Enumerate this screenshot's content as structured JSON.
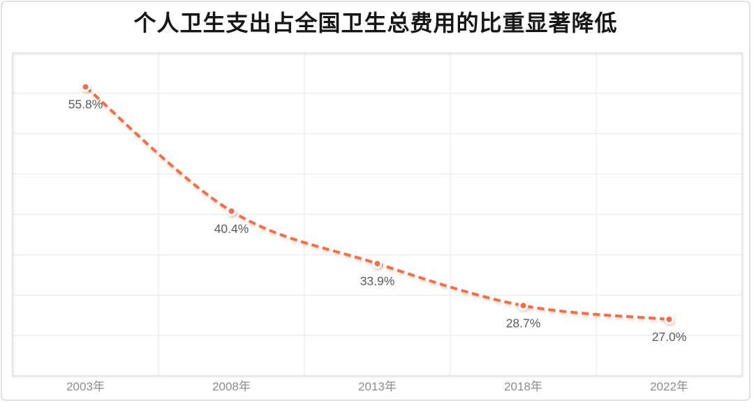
{
  "chart_data": {
    "type": "line",
    "title": "个人卫生支出占全国卫生总费用的比重显著降低",
    "categories": [
      "2003年",
      "2008年",
      "2013年",
      "2018年",
      "2022年"
    ],
    "values": [
      55.8,
      40.4,
      33.9,
      28.7,
      27.0
    ],
    "data_labels": [
      "55.8%",
      "40.4%",
      "33.9%",
      "28.7%",
      "27.0%"
    ],
    "xlabel": "",
    "ylabel": "",
    "ylim": [
      20,
      60
    ],
    "y_grid_step": 5,
    "grid": true,
    "legend_position": "none",
    "line_style": "dashed",
    "smooth": true,
    "colors": {
      "line": "#ed6f4b",
      "marker_fill": "#ed6f4b",
      "marker_ring": "#ffffff",
      "grid": "#e7e7e7",
      "plot_border": "#d9d9d9",
      "data_label": "#595959",
      "axis_label": "#8c8c8c",
      "title": "#161616",
      "card_border": "#e1e1e1"
    }
  }
}
